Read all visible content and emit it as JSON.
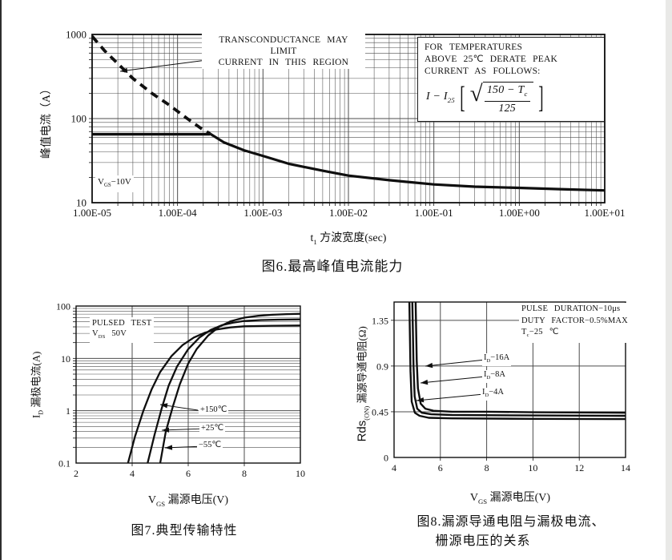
{
  "page": {
    "background": "#ffffff",
    "line_color": "#0f0f0f",
    "grid_color": "#4d4d4d",
    "left_border_color": "#2e2e2e",
    "right_strip_color": "#e9e9e7"
  },
  "chart_data": [
    {
      "id": "fig6",
      "type": "line",
      "title": "图6.最高峰值电流能力",
      "x_axis": {
        "type": "log",
        "min": 1e-05,
        "max": 10,
        "label_parts": {
          "pre": "t",
          "sub": "1",
          "post": " 方波宽度(sec)"
        },
        "ticks": [
          {
            "v": 1e-05,
            "label": "1.00E-05"
          },
          {
            "v": 0.0001,
            "label": "1.00E-04"
          },
          {
            "v": 0.001,
            "label": "1.00E-03"
          },
          {
            "v": 0.01,
            "label": "1.00E-02"
          },
          {
            "v": 0.1,
            "label": "1.00E-01"
          },
          {
            "v": 1,
            "label": "1.00E+00"
          },
          {
            "v": 10,
            "label": "1.00E+01"
          }
        ]
      },
      "y_axis": {
        "type": "log",
        "min": 10,
        "max": 1000,
        "label": "峰值电流（A）",
        "ticks": [
          {
            "v": 10,
            "label": "10"
          },
          {
            "v": 100,
            "label": "100"
          },
          {
            "v": 1000,
            "label": "1000"
          }
        ]
      },
      "series": [
        {
          "name": "transconductance-limit",
          "dash": [
            10,
            7
          ],
          "width": 3.8,
          "points": [
            [
              1e-05,
              950
            ],
            [
              1.4e-05,
              640
            ],
            [
              2e-05,
              450
            ],
            [
              3e-05,
              300
            ],
            [
              5e-05,
              200
            ],
            [
              8e-05,
              145
            ],
            [
              0.00013,
              100
            ],
            [
              0.00019,
              76
            ],
            [
              0.00024,
              66
            ]
          ]
        },
        {
          "name": "peak-current-capability",
          "width": 3.2,
          "points": [
            [
              0.00024,
              66
            ],
            [
              0.00035,
              52
            ],
            [
              0.0006,
              42
            ],
            [
              0.001,
              36
            ],
            [
              0.002,
              29
            ],
            [
              0.005,
              24
            ],
            [
              0.01,
              21
            ],
            [
              0.03,
              18.5
            ],
            [
              0.1,
              16.5
            ],
            [
              0.3,
              15.5
            ],
            [
              1,
              15
            ],
            [
              3,
              14.5
            ],
            [
              10,
              14
            ]
          ]
        },
        {
          "name": "package-current-limit",
          "width": 3.4,
          "points": [
            [
              1e-05,
              65
            ],
            [
              0.00024,
              65
            ]
          ]
        }
      ],
      "annotations": {
        "transconductance": {
          "line1": "TRANSCONDUCTANCE MAY LIMIT",
          "line2": "CURRENT IN THIS REGION"
        },
        "derate": {
          "line1": "FOR TEMPERATURES",
          "line2": "ABOVE 25℃ DERATE PEAK",
          "line3": "CURRENT AS FOLLOWS:",
          "formula": {
            "lhs": "I − I",
            "lhs_sub": "25",
            "num": "150 − T",
            "num_sub": "c",
            "den": "125"
          }
        },
        "vgs": {
          "pre": "V",
          "sub": "GS",
          "post": "−10V"
        }
      }
    },
    {
      "id": "fig7",
      "type": "line",
      "title": "图7.典型传输特性",
      "x_axis": {
        "type": "linear",
        "min": 2,
        "max": 10,
        "grid": [
          4,
          6,
          8
        ],
        "label_parts": {
          "pre": "V",
          "sub": "GS",
          "post": " 漏源电压(V)"
        },
        "ticks": [
          {
            "v": 2,
            "label": "2"
          },
          {
            "v": 4,
            "label": "4"
          },
          {
            "v": 6,
            "label": "6"
          },
          {
            "v": 8,
            "label": "8"
          },
          {
            "v": 10,
            "label": "10"
          }
        ]
      },
      "y_axis": {
        "type": "log",
        "min": 0.1,
        "max": 100,
        "label_parts": {
          "pre": "I",
          "sub": "D",
          "post": " 漏极电流(A)"
        },
        "ticks": [
          {
            "v": 0.1,
            "label": "0.1"
          },
          {
            "v": 1,
            "label": "1"
          },
          {
            "v": 10,
            "label": "10"
          },
          {
            "v": 100,
            "label": "100"
          }
        ]
      },
      "series": [
        {
          "name": "+150C",
          "width": 2.3,
          "points": [
            [
              3.85,
              0.1
            ],
            [
              4.1,
              0.32
            ],
            [
              4.4,
              1.0
            ],
            [
              4.7,
              2.6
            ],
            [
              5.0,
              5.5
            ],
            [
              5.4,
              11
            ],
            [
              5.8,
              18
            ],
            [
              6.2,
              25
            ],
            [
              6.6,
              31
            ],
            [
              7.0,
              35.5
            ],
            [
              7.5,
              39
            ],
            [
              8.0,
              41
            ],
            [
              9.0,
              42
            ],
            [
              10,
              42.5
            ]
          ]
        },
        {
          "name": "+25C",
          "width": 2.3,
          "points": [
            [
              4.55,
              0.1
            ],
            [
              4.8,
              0.35
            ],
            [
              5.05,
              1.1
            ],
            [
              5.3,
              3.0
            ],
            [
              5.6,
              7.0
            ],
            [
              6.0,
              15
            ],
            [
              6.4,
              25
            ],
            [
              6.8,
              35
            ],
            [
              7.2,
              43
            ],
            [
              7.6,
              48
            ],
            [
              8.0,
              52
            ],
            [
              8.6,
              54
            ],
            [
              9.2,
              55
            ],
            [
              10,
              55.5
            ]
          ]
        },
        {
          "name": "-55C",
          "width": 2.3,
          "points": [
            [
              5.0,
              0.1
            ],
            [
              5.2,
              0.4
            ],
            [
              5.45,
              1.2
            ],
            [
              5.7,
              3.2
            ],
            [
              6.0,
              8
            ],
            [
              6.3,
              15
            ],
            [
              6.7,
              27
            ],
            [
              7.1,
              40
            ],
            [
              7.5,
              51
            ],
            [
              8.0,
              60
            ],
            [
              8.5,
              65
            ],
            [
              9.0,
              68
            ],
            [
              9.5,
              70
            ],
            [
              10,
              71
            ]
          ]
        }
      ],
      "curve_labels": [
        "+150℃",
        "+25℃",
        "−55℃"
      ],
      "annotations": {
        "test": {
          "line1": "PULSED TEST",
          "v_pre": "V",
          "v_sub": "DS",
          "v_post": " 50V"
        }
      }
    },
    {
      "id": "fig8",
      "type": "line",
      "title_line1": "图8.漏源导通电阻与漏极电流、",
      "title_line2": "栅源电压的关系",
      "x_axis": {
        "type": "linear",
        "min": 4,
        "max": 14,
        "grid": [
          6,
          8,
          10,
          12
        ],
        "label_parts": {
          "pre": "V",
          "sub": "GS",
          "post": " 漏源电压(V)"
        },
        "ticks": [
          {
            "v": 4,
            "label": "4"
          },
          {
            "v": 6,
            "label": "6"
          },
          {
            "v": 8,
            "label": "8"
          },
          {
            "v": 10,
            "label": "10"
          },
          {
            "v": 12,
            "label": "12"
          },
          {
            "v": 14,
            "label": "14"
          }
        ]
      },
      "y_axis": {
        "type": "linear",
        "min": 0,
        "max": 1.53,
        "grid": [
          0.45,
          0.9,
          1.35
        ],
        "label_parts": {
          "pre": "Rds",
          "sub": "(ON)",
          "post": " 漏源导通电阻(Ω)"
        },
        "ticks": [
          {
            "v": 0,
            "label": "0"
          },
          {
            "v": 0.45,
            "label": "0.45"
          },
          {
            "v": 0.9,
            "label": "0.9"
          },
          {
            "v": 1.35,
            "label": "1.35"
          }
        ]
      },
      "series": [
        {
          "name": "ID-16A",
          "width": 2.4,
          "points": [
            [
              4.93,
              1.53
            ],
            [
              4.98,
              0.95
            ],
            [
              5.03,
              0.68
            ],
            [
              5.15,
              0.53
            ],
            [
              5.35,
              0.48
            ],
            [
              5.7,
              0.46
            ],
            [
              6.5,
              0.45
            ],
            [
              8,
              0.45
            ],
            [
              10,
              0.445
            ],
            [
              14,
              0.44
            ]
          ]
        },
        {
          "name": "ID-8A",
          "width": 2.4,
          "points": [
            [
              4.79,
              1.53
            ],
            [
              4.84,
              0.9
            ],
            [
              4.89,
              0.6
            ],
            [
              5.0,
              0.48
            ],
            [
              5.2,
              0.44
            ],
            [
              5.6,
              0.425
            ],
            [
              6.5,
              0.418
            ],
            [
              10,
              0.413
            ],
            [
              14,
              0.41
            ]
          ]
        },
        {
          "name": "ID-4A",
          "width": 2.4,
          "points": [
            [
              4.66,
              1.53
            ],
            [
              4.71,
              0.85
            ],
            [
              4.76,
              0.55
            ],
            [
              4.9,
              0.44
            ],
            [
              5.1,
              0.41
            ],
            [
              5.5,
              0.39
            ],
            [
              6.5,
              0.385
            ],
            [
              10,
              0.38
            ],
            [
              14,
              0.378
            ]
          ]
        }
      ],
      "curve_labels": [
        {
          "pre": "I",
          "sub": "D",
          "post": "−16A"
        },
        {
          "pre": "I",
          "sub": "D",
          "post": "−8A"
        },
        {
          "pre": "I",
          "sub": "D",
          "post": "−4A"
        }
      ],
      "annotations": {
        "pulse": {
          "line1": "PULSE DURATION−10μs",
          "line2": "DUTY FACTOR−0.5%MAX",
          "line3_pre": "T",
          "line3_sub": "c",
          "line3_post": "−25 ℃"
        }
      }
    }
  ]
}
